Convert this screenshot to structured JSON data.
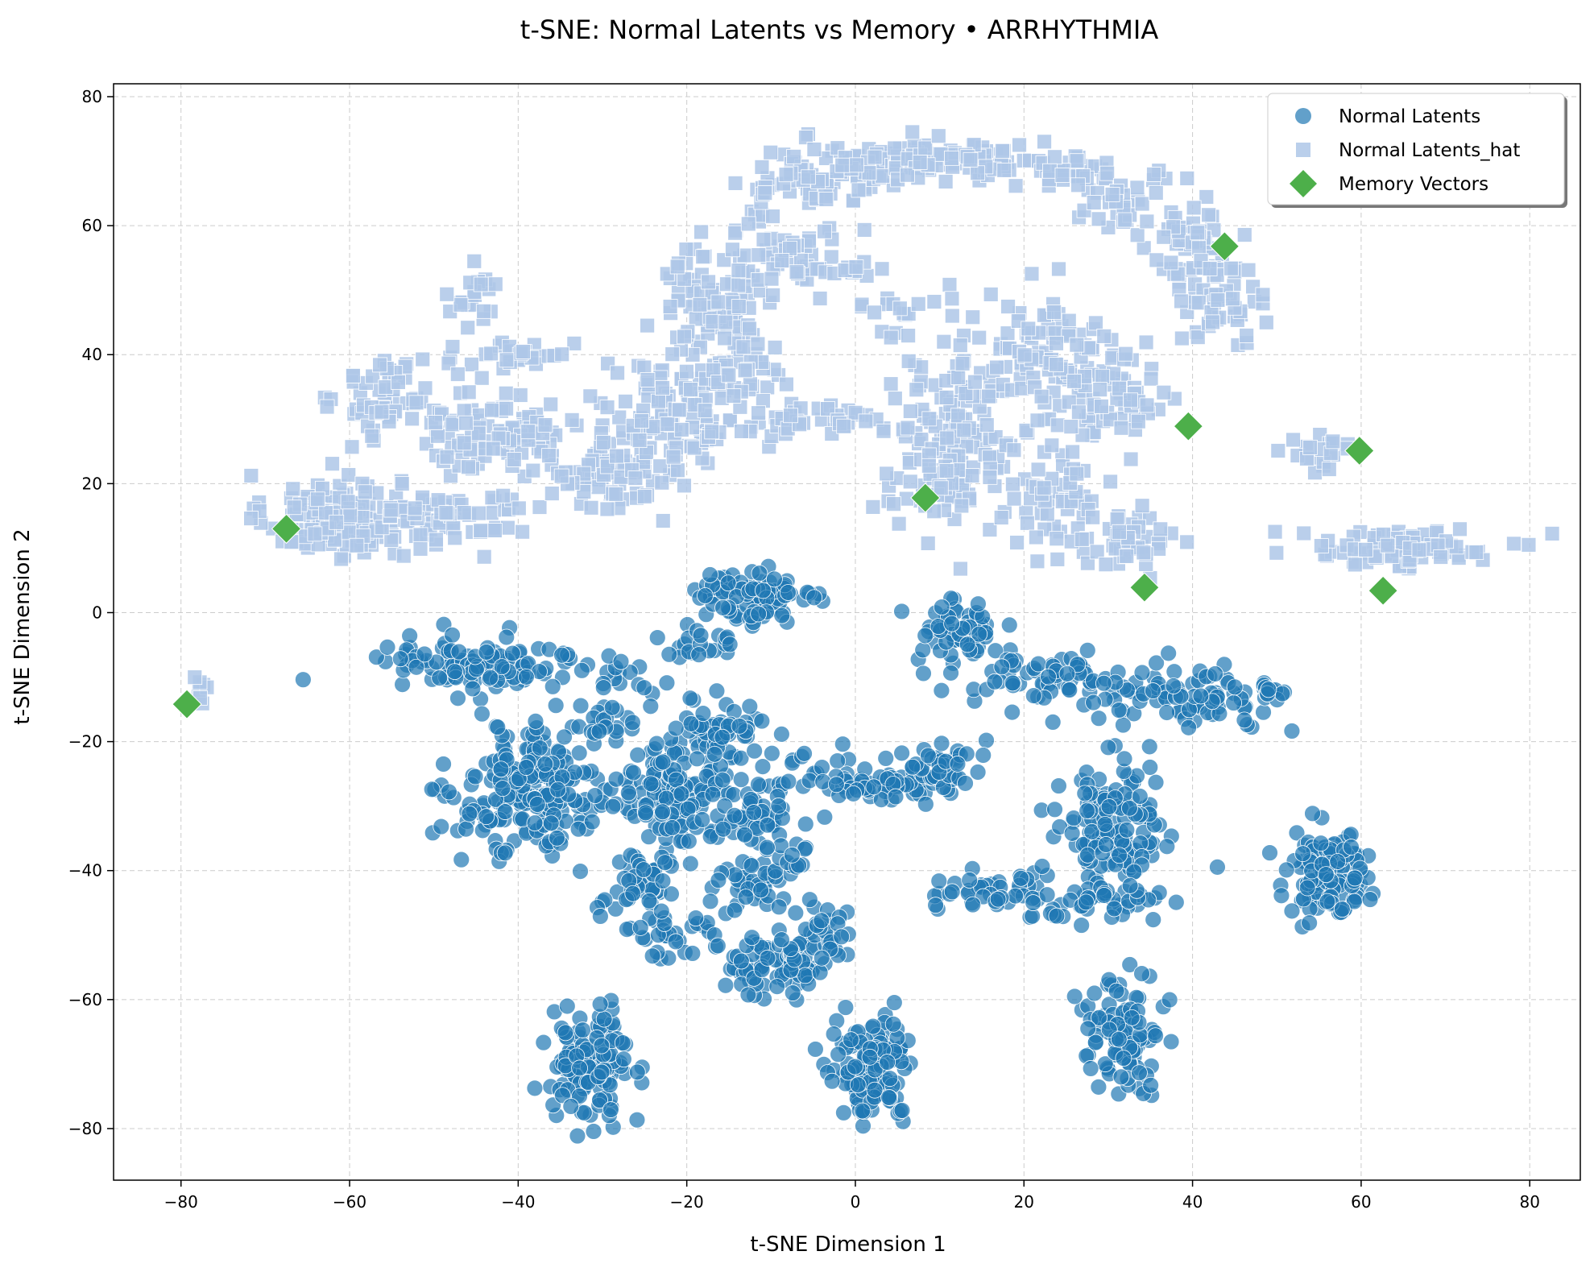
{
  "chart_data": {
    "type": "scatter",
    "title": "t-SNE: Normal Latents vs Memory • ARRHYTHMIA",
    "xlabel": "t-SNE Dimension 1",
    "ylabel": "t-SNE Dimension 2",
    "xlim": [
      -88,
      86
    ],
    "ylim": [
      -88,
      82
    ],
    "xticks": [
      -80,
      -60,
      -40,
      -20,
      0,
      20,
      40,
      60,
      80
    ],
    "yticks": [
      -80,
      -60,
      -40,
      -20,
      0,
      20,
      40,
      60,
      80
    ],
    "xtick_labels": [
      "−80",
      "−60",
      "−40",
      "−20",
      "0",
      "20",
      "40",
      "60",
      "80"
    ],
    "ytick_labels": [
      "−80",
      "−60",
      "−40",
      "−20",
      "0",
      "20",
      "40",
      "60",
      "80"
    ],
    "grid": true,
    "legend_position": "top-right",
    "series": [
      {
        "name": "Normal Latents",
        "marker": "circle",
        "color": "#1f77b4",
        "clusters": [
          [
            -45,
            -8,
            8,
            3,
            110
          ],
          [
            -28,
            -10,
            3,
            2,
            15
          ],
          [
            -12,
            2,
            5,
            3,
            90
          ],
          [
            -18,
            -5,
            3,
            2,
            20
          ],
          [
            12,
            -3,
            3,
            3,
            60
          ],
          [
            22,
            -10,
            7,
            2,
            55
          ],
          [
            38,
            -13,
            8,
            3,
            90
          ],
          [
            50,
            -12,
            2,
            1,
            10
          ],
          [
            -38,
            -28,
            6,
            6,
            200
          ],
          [
            -22,
            -28,
            4,
            5,
            130
          ],
          [
            -15,
            -18,
            3,
            3,
            50
          ],
          [
            -30,
            -17,
            3,
            2,
            25
          ],
          [
            -25,
            -42,
            3,
            4,
            50
          ],
          [
            -12,
            -30,
            3,
            5,
            60
          ],
          [
            -12,
            -42,
            3,
            3,
            40
          ],
          [
            -5,
            -22,
            2,
            2,
            8
          ],
          [
            -8,
            -38,
            2,
            2,
            12
          ],
          [
            3,
            -27,
            5,
            2,
            60
          ],
          [
            10,
            -23,
            3,
            2,
            35
          ],
          [
            31,
            -33,
            4,
            6,
            130
          ],
          [
            16,
            -43,
            4,
            2,
            40
          ],
          [
            28,
            -45,
            5,
            2,
            50
          ],
          [
            -22,
            -50,
            3,
            3,
            30
          ],
          [
            -10,
            -55,
            4,
            3,
            70
          ],
          [
            -5,
            -50,
            3,
            3,
            40
          ],
          [
            -31,
            -70,
            3,
            5,
            130
          ],
          [
            2,
            -71,
            3,
            5,
            140
          ],
          [
            32,
            -65,
            3,
            5,
            100
          ],
          [
            56,
            -40,
            3,
            4,
            130
          ]
        ]
      },
      {
        "name": "Normal Latents_hat",
        "marker": "square",
        "color": "#aec7e8",
        "clusters": [
          [
            -62,
            15,
            5,
            4,
            140
          ],
          [
            -48,
            15,
            6,
            3,
            70
          ],
          [
            -45,
            48,
            2,
            3,
            20
          ],
          [
            -55,
            33,
            4,
            4,
            60
          ],
          [
            -40,
            40,
            4,
            2,
            30
          ],
          [
            -42,
            28,
            6,
            4,
            90
          ],
          [
            -30,
            22,
            6,
            4,
            70
          ],
          [
            -22,
            30,
            5,
            6,
            100
          ],
          [
            -15,
            40,
            4,
            8,
            100
          ],
          [
            -18,
            50,
            3,
            5,
            40
          ],
          [
            -8,
            58,
            4,
            6,
            60
          ],
          [
            -5,
            68,
            5,
            3,
            50
          ],
          [
            5,
            70,
            6,
            2,
            60
          ],
          [
            15,
            70,
            5,
            2,
            50
          ],
          [
            25,
            68,
            4,
            2,
            30
          ],
          [
            33,
            63,
            4,
            3,
            40
          ],
          [
            40,
            55,
            3,
            5,
            50
          ],
          [
            44,
            48,
            3,
            3,
            40
          ],
          [
            0,
            53,
            2,
            1,
            10
          ],
          [
            5,
            47,
            3,
            2,
            10
          ],
          [
            -5,
            30,
            5,
            2,
            30
          ],
          [
            12,
            30,
            5,
            10,
            150
          ],
          [
            22,
            40,
            4,
            5,
            60
          ],
          [
            28,
            35,
            5,
            6,
            80
          ],
          [
            33,
            32,
            3,
            2,
            15
          ],
          [
            25,
            18,
            4,
            5,
            60
          ],
          [
            32,
            10,
            3,
            3,
            40
          ],
          [
            10,
            20,
            3,
            3,
            30
          ],
          [
            55,
            25,
            3,
            2,
            20
          ],
          [
            65,
            10,
            7,
            2,
            80
          ],
          [
            -78,
            -12,
            1,
            2,
            8
          ]
        ]
      },
      {
        "name": "Memory Vectors",
        "marker": "diamond",
        "color": "#4daf4a",
        "x": [
          -79.3,
          -67.5,
          8.3,
          34.3,
          39.5,
          43.8,
          59.8,
          62.6
        ],
        "y": [
          -14.2,
          13.0,
          17.8,
          3.9,
          28.9,
          56.8,
          25.1,
          3.4
        ]
      }
    ]
  }
}
